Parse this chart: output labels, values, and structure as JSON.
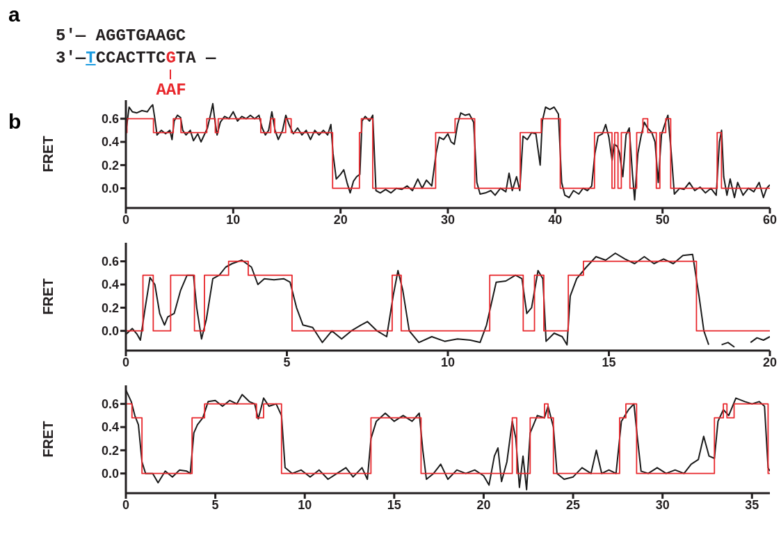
{
  "chart_data": [
    {
      "type": "other",
      "annotations": [
        "a",
        "5′— AGGTGAAGC",
        "3′—",
        "T",
        "CCACTTC",
        "G",
        "TA —",
        "AAF"
      ]
    },
    {
      "type": "line",
      "ylabel": "FRET",
      "annotations": [
        "b"
      ],
      "xlim": [
        0,
        60
      ],
      "xticks": [
        0,
        10,
        20,
        30,
        40,
        50,
        60
      ],
      "ylim": [
        -0.17,
        0.76
      ],
      "yticks": [
        {
          "value": 0,
          "label": "0.0"
        },
        {
          "value": 0.2,
          "label": "0.2"
        },
        {
          "value": 0.4,
          "label": "0.4"
        },
        {
          "value": 0.6,
          "label": "0.6"
        }
      ],
      "series": [
        {
          "type": "line",
          "color": "#1a1a1a",
          "x": [
            0,
            0.3,
            0.6,
            1,
            1.5,
            2,
            2.3,
            2.5,
            2.7,
            2.9,
            3.3,
            3.7,
            4.1,
            4.3,
            4.5,
            4.8,
            5.1,
            5.3,
            5.6,
            6,
            6.3,
            6.7,
            7,
            7.3,
            7.6,
            7.9,
            8.1,
            8.3,
            8.5,
            8.8,
            9.2,
            9.6,
            10,
            10.4,
            10.8,
            11.2,
            11.6,
            12,
            12.4,
            12.7,
            13,
            13.3,
            13.6,
            13.9,
            14.2,
            14.6,
            14.9,
            15.2,
            15.6,
            16,
            16.4,
            16.8,
            17.2,
            17.6,
            18,
            18.4,
            18.8,
            19.1,
            19.3,
            19.6,
            20,
            20.3,
            20.6,
            20.9,
            21.2,
            21.5,
            21.8,
            22,
            22.3,
            22.7,
            23,
            23.3,
            23.7,
            24.2,
            24.7,
            25.2,
            25.7,
            26.2,
            26.7,
            27.2,
            27.6,
            28,
            28.5,
            28.9,
            29.2,
            29.6,
            30,
            30.3,
            30.6,
            30.9,
            31.2,
            31.6,
            32,
            32.4,
            32.7,
            33,
            33.5,
            34,
            34.4,
            34.9,
            35.4,
            35.7,
            36,
            36.4,
            36.7,
            37,
            37.4,
            37.8,
            38.2,
            38.6,
            38.8,
            39.1,
            39.5,
            39.9,
            40.3,
            40.6,
            40.9,
            41.3,
            41.7,
            42.2,
            42.6,
            43,
            43.4,
            43.7,
            44,
            44.4,
            44.7,
            45,
            45.3,
            45.5,
            45.8,
            46,
            46.3,
            46.6,
            46.9,
            47.2,
            47.4,
            47.7,
            48,
            48.3,
            48.6,
            49,
            49.3,
            49.6,
            49.9,
            50.2,
            50.5,
            50.8,
            51.1,
            51.6,
            52,
            52.5,
            53,
            53.5,
            54,
            54.5,
            55,
            55.3,
            55.5,
            55.7,
            56,
            56.3,
            56.7,
            57,
            57.5,
            58,
            58.5,
            59,
            59.4,
            59.7,
            60
          ],
          "values": [
            0.48,
            0.7,
            0.66,
            0.65,
            0.67,
            0.66,
            0.7,
            0.72,
            0.6,
            0.46,
            0.5,
            0.47,
            0.5,
            0.42,
            0.58,
            0.63,
            0.61,
            0.5,
            0.46,
            0.5,
            0.41,
            0.47,
            0.4,
            0.46,
            0.52,
            0.64,
            0.73,
            0.58,
            0.46,
            0.57,
            0.62,
            0.6,
            0.66,
            0.58,
            0.62,
            0.6,
            0.63,
            0.6,
            0.63,
            0.52,
            0.46,
            0.5,
            0.66,
            0.5,
            0.42,
            0.5,
            0.63,
            0.55,
            0.47,
            0.52,
            0.46,
            0.5,
            0.42,
            0.5,
            0.46,
            0.5,
            0.46,
            0.55,
            0.3,
            0.08,
            0.12,
            0.16,
            0.05,
            -0.04,
            0.06,
            0.1,
            0.12,
            0.58,
            0.62,
            0.58,
            0.63,
            -0.02,
            -0.04,
            -0.01,
            -0.04,
            0,
            -0.01,
            0.02,
            -0.02,
            0.08,
            0,
            0.07,
            0.02,
            0.3,
            0.44,
            0.42,
            0.47,
            0.4,
            0.38,
            0.55,
            0.65,
            0.63,
            0.64,
            0.57,
            0.05,
            -0.05,
            -0.04,
            -0.02,
            -0.06,
            0,
            -0.03,
            0.13,
            -0.02,
            0.1,
            -0.02,
            0.45,
            0.42,
            0.48,
            0.47,
            0.2,
            0.58,
            0.7,
            0.68,
            0.7,
            0.64,
            0.05,
            -0.06,
            -0.08,
            -0.02,
            -0.05,
            0,
            -0.02,
            0.02,
            0.3,
            0.45,
            0.47,
            0.55,
            0.44,
            0.24,
            0.38,
            0.36,
            0.3,
            0.1,
            0.46,
            0.52,
            0.12,
            -0.1,
            0.3,
            0.45,
            0.57,
            0.52,
            0.48,
            0.4,
            0.05,
            0.46,
            0.55,
            0.63,
            0.32,
            -0.05,
            0,
            -0.01,
            0.05,
            -0.02,
            0.01,
            -0.04,
            0,
            -0.06,
            0.4,
            0.5,
            0.1,
            -0.06,
            0.08,
            -0.08,
            0.05,
            -0.06,
            0,
            -0.03,
            0.05,
            -0.08,
            0,
            0.03
          ]
        },
        {
          "type": "step",
          "color": "#e8262b",
          "x": [
            0,
            0.1,
            2.57,
            4.42,
            5.13,
            7.54,
            8.33,
            8.6,
            12.57,
            13.5,
            13.86,
            14.89,
            15.4,
            19.26,
            21.76,
            21.94,
            23,
            28.86,
            30.67,
            32.5,
            36.74,
            38.7,
            40.47,
            43.66,
            45.29,
            45.54,
            45.85,
            46.16,
            46.96,
            47.59,
            48.17,
            48.62,
            49.42,
            49.75,
            50.3,
            50.76,
            55.09,
            55.49,
            60
          ],
          "values": [
            0.48,
            0.6,
            0.48,
            0.6,
            0.48,
            0.6,
            0.48,
            0.6,
            0.48,
            0.6,
            0.48,
            0.6,
            0.48,
            0,
            0.48,
            0.6,
            0,
            0.48,
            0.6,
            0,
            0.48,
            0.6,
            0,
            0.48,
            0,
            0.48,
            0,
            0.48,
            0,
            0.48,
            0.6,
            0.48,
            0,
            0.48,
            0.6,
            0,
            0.48,
            0,
            0
          ]
        }
      ]
    },
    {
      "type": "line",
      "ylabel": "FRET",
      "xlim": [
        0,
        20
      ],
      "xticks": [
        0,
        5,
        10,
        15,
        20
      ],
      "ylim": [
        -0.17,
        0.76
      ],
      "yticks": [
        {
          "value": 0,
          "label": "0.0"
        },
        {
          "value": 0.2,
          "label": "0.2"
        },
        {
          "value": 0.4,
          "label": "0.4"
        },
        {
          "value": 0.6,
          "label": "0.6"
        }
      ],
      "series": [
        {
          "type": "line",
          "color": "#1a1a1a",
          "x": [
            0,
            0.2,
            0.35,
            0.45,
            0.6,
            0.75,
            0.9,
            1.05,
            1.2,
            1.3,
            1.5,
            1.7,
            1.9,
            2.1,
            2.2,
            2.35,
            2.5,
            2.7,
            2.9,
            3.1,
            3.3,
            3.6,
            3.9,
            4.1,
            4.3,
            4.6,
            4.9,
            5.1,
            5.3,
            5.5,
            5.8,
            6.1,
            6.4,
            6.7,
            7,
            7.3,
            7.5,
            7.8,
            8.1,
            8.3,
            8.45,
            8.6,
            8.8,
            9.1,
            9.5,
            9.9,
            10.3,
            10.7,
            11,
            11.2,
            11.5,
            11.8,
            12.1,
            12.3,
            12.45,
            12.6,
            12.8,
            12.95,
            13.05,
            13.3,
            13.55,
            13.7,
            13.8,
            14,
            14.3,
            14.6,
            14.9,
            15.2,
            15.5,
            15.8,
            16.1,
            16.4,
            16.7,
            17,
            17.3,
            17.6,
            17.8,
            17.95,
            18.1,
            18.3,
            18.5,
            18.7,
            18.9,
            19.1,
            19.4,
            19.6,
            19.8,
            20
          ],
          "values": [
            -0.03,
            0.02,
            -0.03,
            -0.08,
            0.2,
            0.46,
            0.4,
            0.15,
            0.05,
            0.12,
            0.15,
            0.35,
            0.48,
            0.48,
            0.2,
            -0.07,
            0.1,
            0.45,
            0.48,
            0.55,
            0.58,
            0.61,
            0.55,
            0.4,
            0.45,
            0.44,
            0.45,
            0.42,
            0.2,
            0.05,
            0.03,
            -0.1,
            0,
            -0.07,
            0,
            0.05,
            0.08,
            0,
            -0.05,
            0.3,
            0.52,
            0.35,
            0,
            -0.1,
            -0.05,
            -0.09,
            -0.07,
            -0.08,
            -0.1,
            0.05,
            0.42,
            0.43,
            0.48,
            0.45,
            0.15,
            0.2,
            0.52,
            0.45,
            -0.09,
            -0.02,
            -0.05,
            -0.12,
            0.3,
            0.45,
            0.55,
            0.64,
            0.61,
            0.67,
            0.62,
            0.58,
            0.64,
            0.58,
            0.62,
            0.58,
            0.65,
            0.66,
            0.3,
            0,
            -0.12,
            null,
            -0.12,
            -0.1,
            -0.14,
            null,
            -0.1,
            -0.06,
            -0.08,
            -0.05
          ]
        },
        {
          "type": "step",
          "color": "#e8262b",
          "x": [
            0,
            0.53,
            0.85,
            1.39,
            2.13,
            2.44,
            3.19,
            3.8,
            5.16,
            8.27,
            8.55,
            11.3,
            12.34,
            12.69,
            12.98,
            13.74,
            14.21,
            17.72,
            20
          ],
          "values": [
            0,
            0.48,
            0,
            0.48,
            0,
            0.48,
            0.6,
            0.48,
            0,
            0.48,
            0,
            0.48,
            0,
            0.48,
            0,
            0.48,
            0.6,
            0,
            0
          ]
        }
      ]
    },
    {
      "type": "line",
      "ylabel": "FRET",
      "xlim": [
        0,
        36
      ],
      "xticks": [
        0,
        5,
        10,
        15,
        20,
        25,
        30,
        35
      ],
      "ylim": [
        -0.17,
        0.76
      ],
      "yticks": [
        {
          "value": 0,
          "label": "0.0"
        },
        {
          "value": 0.2,
          "label": "0.2"
        },
        {
          "value": 0.4,
          "label": "0.4"
        },
        {
          "value": 0.6,
          "label": "0.6"
        }
      ],
      "series": [
        {
          "type": "line",
          "color": "#1a1a1a",
          "x": [
            0,
            0.3,
            0.5,
            0.7,
            0.9,
            1.1,
            1.5,
            1.8,
            2.2,
            2.6,
            3,
            3.4,
            3.6,
            3.8,
            4,
            4.3,
            4.6,
            5,
            5.4,
            5.8,
            6.2,
            6.5,
            6.9,
            7.2,
            7.4,
            7.7,
            8,
            8.4,
            8.7,
            8.9,
            9.3,
            9.8,
            10.3,
            10.8,
            11.3,
            11.8,
            12.3,
            12.7,
            13.2,
            13.5,
            13.7,
            14,
            14.5,
            15,
            15.5,
            16,
            16.4,
            16.6,
            16.8,
            17.2,
            17.6,
            18,
            18.5,
            19,
            19.5,
            20,
            20.3,
            20.6,
            20.8,
            21,
            21.3,
            21.6,
            21.8,
            22,
            22.2,
            22.4,
            22.6,
            23,
            23.4,
            23.6,
            23.9,
            24.1,
            24.5,
            25,
            25.5,
            26,
            26.3,
            26.6,
            27,
            27.4,
            27.7,
            28.1,
            28.4,
            28.6,
            28.8,
            29.2,
            29.7,
            30.2,
            30.7,
            31.2,
            31.6,
            32,
            32.3,
            32.6,
            32.9,
            33.1,
            33.4,
            33.7,
            34.1,
            34.6,
            35,
            35.4,
            35.7,
            35.9,
            36
          ],
          "values": [
            0.72,
            0.62,
            0.5,
            0.42,
            0.1,
            0,
            0,
            -0.08,
            0.02,
            -0.03,
            0.03,
            0.02,
            0,
            0.35,
            0.42,
            0.48,
            0.62,
            0.63,
            0.58,
            0.63,
            0.6,
            0.68,
            0.62,
            0.6,
            0.47,
            0.65,
            0.58,
            0.6,
            0.5,
            0.05,
            0,
            0.03,
            -0.03,
            0.03,
            -0.05,
            0,
            0.05,
            -0.03,
            0.05,
            -0.05,
            0.3,
            0.45,
            0.52,
            0.45,
            0.5,
            0.45,
            0.52,
            0.2,
            -0.05,
            0,
            0.08,
            -0.05,
            0.03,
            0,
            0.03,
            -0.02,
            -0.1,
            0.15,
            0.22,
            -0.07,
            0.1,
            0.45,
            0.3,
            -0.12,
            0.15,
            -0.14,
            0.35,
            0.5,
            0.48,
            0.58,
            0.4,
            0,
            -0.05,
            -0.03,
            0.05,
            0,
            0.2,
            0,
            0.03,
            0,
            0.45,
            0.55,
            0.6,
            0.3,
            0.02,
            0,
            0.05,
            0,
            0.03,
            0,
            0.08,
            0.12,
            0.32,
            0.15,
            0.13,
            0.45,
            0.55,
            0.5,
            0.65,
            0.62,
            0.6,
            0.62,
            0.58,
            0.05,
            0.02
          ]
        },
        {
          "type": "step",
          "color": "#e8262b",
          "x": [
            0,
            0.34,
            0.9,
            3.7,
            4.4,
            7.3,
            7.7,
            8.7,
            13.7,
            16.5,
            21.6,
            21.85,
            22.6,
            23.4,
            23.6,
            23.9,
            27.6,
            27.95,
            28.55,
            32.9,
            33.4,
            33.6,
            34,
            35.9,
            36
          ],
          "values": [
            0.6,
            0.48,
            0,
            0.48,
            0.6,
            0.48,
            0.6,
            0,
            0.48,
            0,
            0.48,
            0,
            0.48,
            0.6,
            0.48,
            0,
            0.48,
            0.6,
            0,
            0.48,
            0.6,
            0.48,
            0.6,
            0,
            0
          ]
        }
      ]
    }
  ]
}
